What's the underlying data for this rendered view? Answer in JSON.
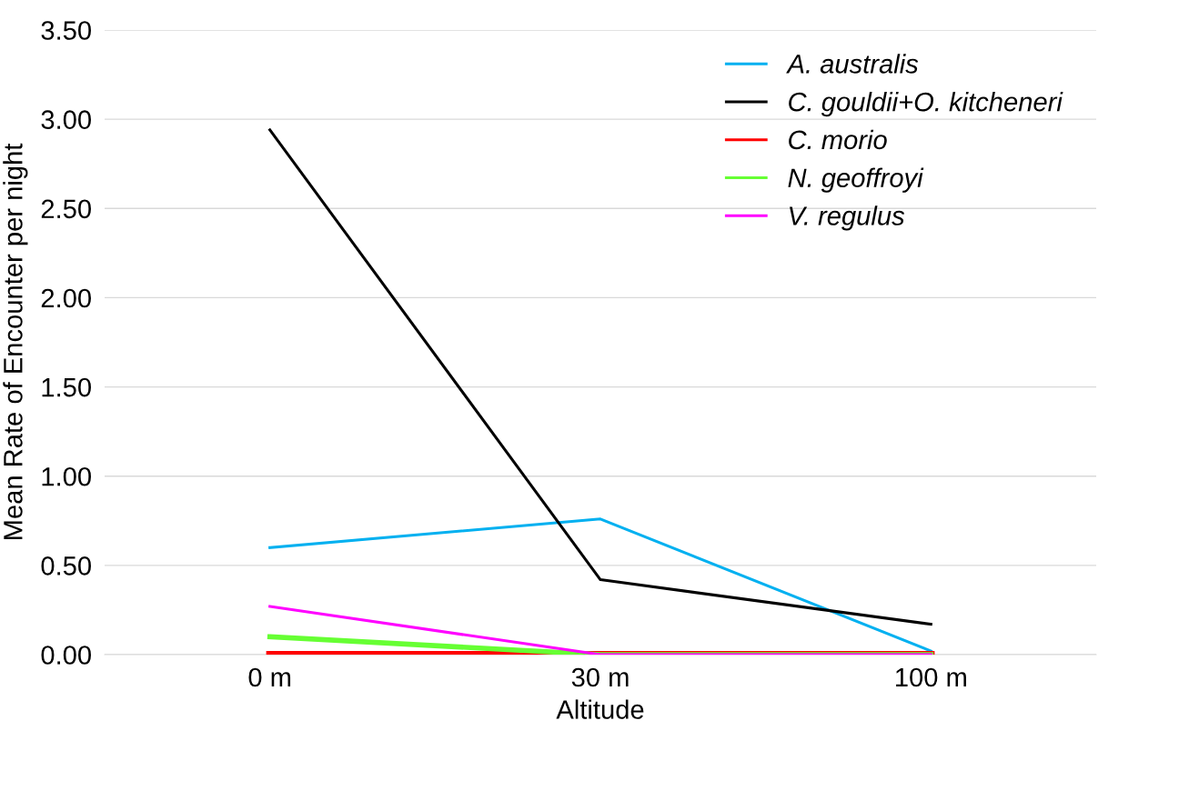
{
  "chart_data": {
    "type": "line",
    "xlabel": "Altitude",
    "ylabel": "Mean Rate of Encounter per night",
    "categories": [
      "0 m",
      "30 m",
      "100 m"
    ],
    "series": [
      {
        "name": "A. australis",
        "color": "#00b0f0",
        "values": [
          0.6,
          0.76,
          0.02
        ]
      },
      {
        "name": "C. gouldii+O. kitcheneri",
        "color": "#000000",
        "values": [
          2.94,
          0.42,
          0.17
        ]
      },
      {
        "name": "C. morio",
        "color": "#ff0000",
        "values": [
          0.0,
          0.0,
          0.0
        ]
      },
      {
        "name": "N. geoffroyi",
        "color": "#66ff33",
        "values": [
          0.1,
          0.0,
          0.0
        ]
      },
      {
        "name": "V. regulus",
        "color": "#ff00ff",
        "values": [
          0.27,
          0.0,
          0.0
        ]
      }
    ],
    "ylim": [
      0,
      3.5
    ],
    "yticks": [
      {
        "value": 0,
        "label": "0.00"
      },
      {
        "value": 0.5,
        "label": "0.50"
      },
      {
        "value": 1,
        "label": "1.00"
      },
      {
        "value": 1.5,
        "label": "1.50"
      },
      {
        "value": 2,
        "label": "2.00"
      },
      {
        "value": 2.5,
        "label": "2.50"
      },
      {
        "value": 3,
        "label": "3.00"
      },
      {
        "value": 3.5,
        "label": "3.50"
      }
    ],
    "grid": "y",
    "legend": "top right",
    "marker": "none",
    "line_style": "solid"
  }
}
